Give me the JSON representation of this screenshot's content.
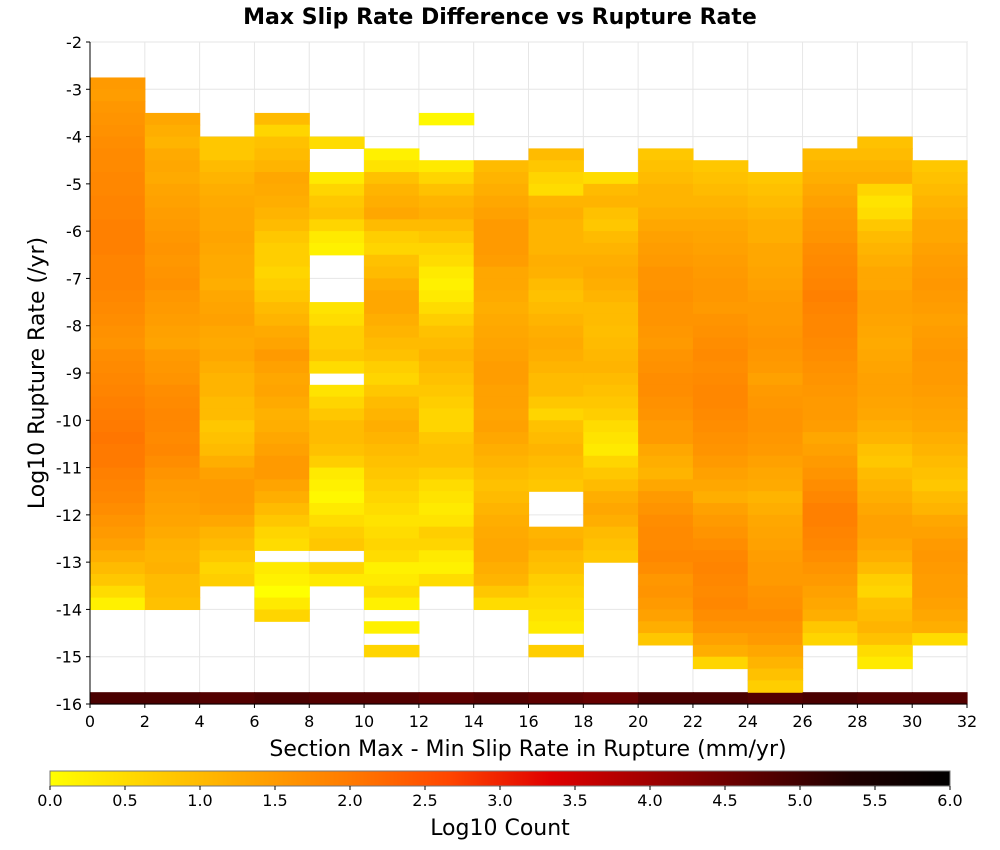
{
  "chart_data": {
    "type": "heatmap",
    "title": "Max Slip Rate Difference vs Rupture Rate",
    "xlabel": "Section Max - Min Slip Rate in Rupture (mm/yr)",
    "ylabel": "Log10 Rupture Rate (/yr)",
    "xlim": [
      0,
      32
    ],
    "ylim": [
      -16,
      -2
    ],
    "x_bin_width": 2,
    "y_bin_height": 0.25,
    "x_ticks": [
      "0",
      "2",
      "4",
      "6",
      "8",
      "10",
      "12",
      "14",
      "16",
      "18",
      "20",
      "22",
      "24",
      "26",
      "28",
      "30",
      "32"
    ],
    "y_ticks": [
      "-2",
      "-3",
      "-4",
      "-5",
      "-6",
      "-7",
      "-8",
      "-9",
      "-10",
      "-11",
      "-12",
      "-13",
      "-14",
      "-15",
      "-16"
    ],
    "grid": true,
    "colorbar": {
      "label": "Log10 Count",
      "range": [
        0.0,
        6.0
      ],
      "ticks": [
        "0.0",
        "0.5",
        "1.0",
        "1.5",
        "2.0",
        "2.5",
        "3.0",
        "3.5",
        "4.0",
        "4.5",
        "5.0",
        "5.5",
        "6.0"
      ],
      "colors": [
        "#ffff00",
        "#ffd000",
        "#ffa500",
        "#ff7a00",
        "#ff4500",
        "#e00000",
        "#a00000",
        "#600000",
        "#200000",
        "#000000"
      ],
      "placement": "bottom"
    },
    "column_x_start": [
      0,
      2,
      4,
      6,
      8,
      10,
      12,
      14,
      16,
      18,
      20,
      22,
      24,
      26,
      28,
      30
    ],
    "columns": [
      {
        "bottom_row_value": 4.9,
        "y_max": -2.75,
        "values": [
          1.5,
          1.45,
          1.55,
          1.6,
          1.65,
          1.7,
          1.75,
          1.75,
          1.8,
          1.8,
          1.85,
          1.85,
          1.9,
          1.9,
          1.9,
          1.85,
          1.85,
          1.85,
          1.8,
          1.75,
          1.7,
          1.65,
          1.6,
          1.7,
          1.75,
          1.8,
          1.85,
          1.9,
          1.95,
          2.0,
          2.05,
          2.0,
          2.0,
          1.9,
          1.85,
          1.8,
          1.7,
          1.6,
          1.5,
          1.4,
          1.2,
          1.0,
          0.8,
          0.5,
          0.2
        ]
      },
      {
        "bottom_row_value": 4.9,
        "y_max": -3.5,
        "values": [
          1.3,
          1.2,
          1.1,
          1.25,
          1.3,
          1.25,
          1.35,
          1.4,
          1.45,
          1.5,
          1.55,
          1.6,
          1.55,
          1.6,
          1.65,
          1.55,
          1.5,
          1.45,
          1.4,
          1.35,
          1.5,
          1.55,
          1.6,
          1.7,
          1.75,
          1.8,
          1.8,
          1.75,
          1.8,
          1.7,
          1.6,
          1.5,
          1.45,
          1.4,
          1.35,
          1.25,
          1.15,
          1.1,
          1.15,
          1.0,
          1.0,
          0.9
        ]
      },
      {
        "bottom_row_value": 4.8,
        "y_max": -3.75,
        "values": [
          null,
          0.8,
          0.8,
          1.0,
          1.1,
          1.2,
          1.25,
          1.3,
          1.3,
          1.35,
          1.3,
          1.25,
          1.25,
          1.2,
          1.3,
          1.35,
          1.4,
          1.3,
          1.25,
          1.3,
          1.2,
          1.1,
          1.1,
          1.0,
          1.0,
          0.8,
          0.9,
          1.0,
          1.2,
          1.4,
          1.5,
          1.5,
          1.45,
          1.3,
          1.1,
          1.0,
          0.8,
          0.6,
          0.7
        ]
      },
      {
        "bottom_row_value": 4.9,
        "y_max": -3.5,
        "values": [
          1.0,
          0.6,
          0.9,
          1.0,
          1.1,
          1.3,
          1.25,
          1.2,
          1.1,
          1.0,
          0.8,
          0.7,
          0.7,
          0.6,
          0.7,
          0.8,
          1.0,
          1.1,
          1.25,
          1.35,
          1.5,
          1.4,
          1.3,
          1.35,
          1.25,
          1.15,
          1.2,
          1.3,
          1.4,
          1.5,
          1.5,
          1.35,
          1.2,
          1.0,
          0.8,
          0.6,
          0.5,
          null,
          0.3,
          0.2,
          0.0,
          0.3,
          0.6
        ]
      },
      {
        "bottom_row_value": 4.8,
        "y_max": -4.0,
        "values": [
          0.5,
          null,
          null,
          0.3,
          0.6,
          0.8,
          0.9,
          0.6,
          0.3,
          0.2,
          null,
          null,
          null,
          null,
          0.4,
          0.5,
          0.7,
          0.7,
          0.8,
          0.5,
          null,
          0.4,
          0.6,
          0.8,
          1.0,
          1.0,
          0.9,
          0.7,
          0.3,
          0.2,
          0.1,
          0.3,
          0.5,
          0.7,
          0.8,
          null,
          0.6,
          0.3,
          null,
          null,
          null,
          null,
          null,
          null
        ]
      },
      {
        "bottom_row_value": 4.8,
        "y_max": -4.25,
        "values": [
          0.2,
          0.4,
          0.9,
          1.1,
          1.2,
          1.3,
          1.0,
          0.7,
          0.6,
          0.9,
          1.0,
          1.2,
          1.3,
          1.3,
          1.2,
          1.1,
          1.0,
          0.9,
          0.7,
          0.6,
          0.8,
          1.0,
          1.1,
          1.2,
          1.1,
          1.0,
          0.9,
          0.8,
          0.7,
          0.6,
          0.5,
          0.4,
          0.5,
          0.6,
          0.5,
          0.2,
          0.3,
          0.5,
          0.2,
          null,
          0.2,
          null,
          0.6
        ]
      },
      {
        "bottom_row_value": 4.7,
        "y_max": -3.5,
        "values": [
          0.1,
          null,
          null,
          null,
          0.3,
          0.6,
          0.9,
          1.1,
          1.2,
          1.0,
          0.8,
          0.6,
          0.5,
          0.3,
          0.2,
          0.3,
          0.5,
          0.7,
          0.9,
          1.0,
          1.1,
          1.0,
          0.9,
          0.8,
          0.7,
          0.6,
          0.6,
          0.8,
          0.9,
          0.9,
          0.7,
          0.5,
          0.4,
          0.3,
          0.4,
          0.7,
          0.6,
          0.3,
          0.2,
          0.5,
          null,
          null,
          null,
          null,
          null
        ]
      },
      {
        "bottom_row_value": 4.8,
        "y_max": -4.5,
        "values": [
          1.0,
          1.1,
          1.2,
          1.3,
          1.4,
          1.5,
          1.5,
          1.5,
          1.45,
          1.3,
          1.3,
          1.25,
          1.2,
          1.25,
          1.3,
          1.35,
          1.4,
          1.45,
          1.45,
          1.4,
          1.4,
          1.35,
          1.4,
          1.3,
          1.2,
          1.1,
          1.0,
          0.9,
          1.0,
          1.1,
          1.2,
          1.25,
          1.3,
          1.3,
          1.2,
          1.1,
          0.8,
          0.5
        ]
      },
      {
        "bottom_row_value": 4.7,
        "y_max": -4.25,
        "values": [
          1.0,
          0.8,
          0.6,
          0.5,
          1.1,
          1.2,
          1.1,
          1.1,
          1.1,
          1.2,
          1.15,
          1.0,
          0.9,
          1.0,
          1.1,
          1.2,
          1.25,
          1.2,
          1.1,
          1.0,
          1.0,
          0.8,
          0.6,
          0.9,
          1.0,
          1.1,
          1.0,
          0.9,
          0.8,
          null,
          null,
          null,
          1.1,
          1.2,
          1.0,
          0.9,
          0.7,
          0.6,
          0.5,
          0.4,
          0.3,
          null,
          0.7
        ]
      },
      {
        "bottom_row_value": 4.6,
        "y_max": -4.75,
        "values": [
          0.5,
          1.0,
          1.1,
          0.9,
          0.8,
          1.0,
          1.1,
          1.2,
          1.25,
          1.2,
          1.1,
          1.0,
          1.0,
          0.95,
          1.0,
          1.05,
          1.1,
          1.0,
          0.9,
          0.8,
          0.7,
          0.5,
          0.4,
          0.3,
          0.6,
          0.8,
          1.0,
          1.2,
          1.3,
          1.2,
          1.0,
          0.9,
          0.8,
          null,
          null,
          null,
          null,
          null,
          null,
          null,
          null,
          null,
          null,
          null
        ]
      },
      {
        "bottom_row_value": 4.9,
        "y_max": -4.25,
        "values": [
          0.8,
          0.9,
          1.0,
          1.1,
          1.1,
          1.2,
          1.3,
          1.4,
          1.45,
          1.5,
          1.6,
          1.6,
          1.65,
          1.6,
          1.6,
          1.55,
          1.5,
          1.6,
          1.65,
          1.7,
          1.7,
          1.65,
          1.6,
          1.5,
          1.5,
          1.3,
          1.2,
          1.1,
          1.3,
          1.5,
          1.6,
          1.7,
          1.75,
          1.75,
          1.8,
          1.7,
          1.55,
          1.6,
          1.5,
          1.4,
          1.2,
          0.8
        ]
      },
      {
        "bottom_row_value": 4.9,
        "y_max": -4.5,
        "values": [
          0.8,
          0.9,
          1.0,
          1.1,
          1.2,
          1.3,
          1.35,
          1.4,
          1.45,
          1.5,
          1.55,
          1.55,
          1.5,
          1.6,
          1.65,
          1.7,
          1.75,
          1.7,
          1.75,
          1.8,
          1.8,
          1.75,
          1.7,
          1.65,
          1.6,
          1.5,
          1.4,
          1.3,
          1.2,
          1.4,
          1.5,
          1.6,
          1.7,
          1.8,
          1.85,
          1.8,
          1.75,
          1.8,
          1.7,
          1.6,
          1.4,
          1.2,
          0.6
        ]
      },
      {
        "bottom_row_value": 4.8,
        "y_max": -4.75,
        "values": [
          0.8,
          0.9,
          1.0,
          1.1,
          1.2,
          1.2,
          1.3,
          1.3,
          1.35,
          1.4,
          1.45,
          1.5,
          1.5,
          1.55,
          1.6,
          1.55,
          1.5,
          1.4,
          1.5,
          1.55,
          1.6,
          1.6,
          1.55,
          1.5,
          1.4,
          1.3,
          1.25,
          1.1,
          1.2,
          1.3,
          1.35,
          1.4,
          1.45,
          1.5,
          1.5,
          1.6,
          1.65,
          1.7,
          1.6,
          1.5,
          1.3,
          1.1,
          0.9,
          0.7
        ]
      },
      {
        "bottom_row_value": 4.9,
        "y_max": -4.25,
        "values": [
          1.0,
          1.1,
          1.2,
          1.3,
          1.4,
          1.5,
          1.55,
          1.6,
          1.7,
          1.75,
          1.8,
          1.85,
          1.9,
          1.85,
          1.8,
          1.8,
          1.75,
          1.7,
          1.65,
          1.6,
          1.55,
          1.5,
          1.5,
          1.45,
          1.3,
          1.4,
          1.5,
          1.6,
          1.7,
          1.8,
          1.9,
          1.9,
          1.85,
          1.8,
          1.7,
          1.6,
          1.5,
          1.4,
          1.3,
          1.2,
          0.8,
          0.6
        ]
      },
      {
        "bottom_row_value": 4.8,
        "y_max": -4.0,
        "values": [
          0.9,
          1.0,
          1.1,
          1.2,
          0.6,
          0.4,
          0.5,
          0.8,
          1.0,
          1.1,
          1.2,
          1.3,
          1.3,
          1.4,
          1.4,
          1.35,
          1.3,
          1.25,
          1.3,
          1.35,
          1.4,
          1.4,
          1.35,
          1.3,
          1.2,
          1.1,
          0.9,
          0.8,
          1.0,
          1.1,
          1.2,
          1.3,
          1.4,
          1.4,
          1.3,
          1.2,
          1.0,
          0.7,
          0.6,
          0.9,
          1.0,
          1.1,
          0.9,
          0.5,
          0.3
        ]
      },
      {
        "bottom_row_value": 4.8,
        "y_max": -4.5,
        "values": [
          0.8,
          0.9,
          1.0,
          1.1,
          1.2,
          1.3,
          1.3,
          1.4,
          1.45,
          1.5,
          1.55,
          1.5,
          1.45,
          1.4,
          1.45,
          1.5,
          1.55,
          1.5,
          1.5,
          1.45,
          1.4,
          1.35,
          1.3,
          1.2,
          1.1,
          1.0,
          0.9,
          0.8,
          1.0,
          1.1,
          1.3,
          1.4,
          1.5,
          1.55,
          1.5,
          1.45,
          1.45,
          1.4,
          1.3,
          1.2,
          0.5
        ]
      }
    ]
  }
}
